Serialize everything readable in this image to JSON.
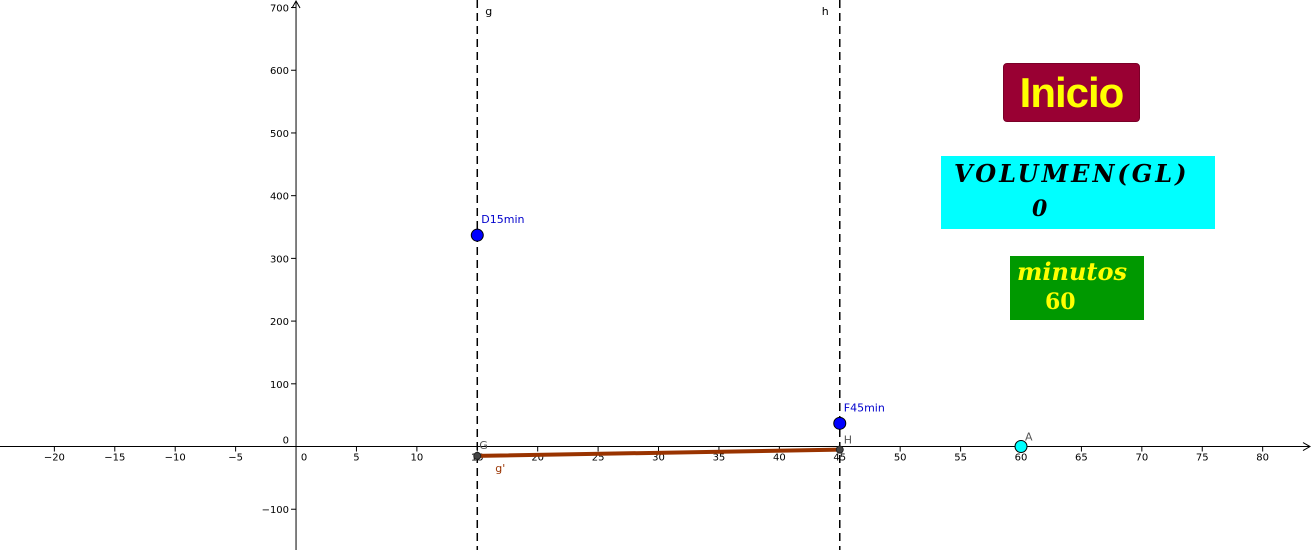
{
  "chart_data": {
    "type": "scatter",
    "xlim": [
      -24.5,
      84
    ],
    "ylim": [
      -165,
      712
    ],
    "x_ticks": [
      -20,
      -15,
      -10,
      -5,
      0,
      5,
      10,
      15,
      20,
      25,
      30,
      35,
      40,
      45,
      50,
      55,
      60,
      65,
      70,
      75,
      80
    ],
    "y_ticks": [
      -100,
      0,
      100,
      200,
      300,
      400,
      500,
      600,
      700
    ],
    "origin_label": "0",
    "grid": false,
    "vertical_lines": [
      {
        "name": "g",
        "x": 15,
        "style": "dashed"
      },
      {
        "name": "h",
        "x": 45,
        "style": "dashed"
      }
    ],
    "points": [
      {
        "name": "D15min",
        "x": 15,
        "y": 337,
        "color": "#0000ff"
      },
      {
        "name": "F45min",
        "x": 45,
        "y": 37,
        "color": "#0000ff"
      },
      {
        "name": "A",
        "x": 60,
        "y": 0,
        "color": "#00ffff"
      },
      {
        "name": "G",
        "x": 15,
        "y": -15,
        "color": "#444444"
      },
      {
        "name": "H",
        "x": 45,
        "y": -5,
        "color": "#444444"
      }
    ],
    "segment": {
      "name": "g'",
      "from": [
        15,
        -15
      ],
      "to": [
        45,
        -5
      ],
      "color": "#993300"
    }
  },
  "controls": {
    "button_label": "Inicio",
    "volume_label": "VOLUMEN(GL)",
    "volume_value": "0",
    "minutes_label": "minutos",
    "minutes_value": "60"
  },
  "colors": {
    "button_bg": "#990033",
    "button_text": "#ffff00",
    "volume_bg": "#00ffff",
    "minutes_bg": "#009900",
    "minutes_text": "#ffff00",
    "point_blue": "#0000ff",
    "point_cyan": "#00ffff",
    "segment": "#993300"
  }
}
